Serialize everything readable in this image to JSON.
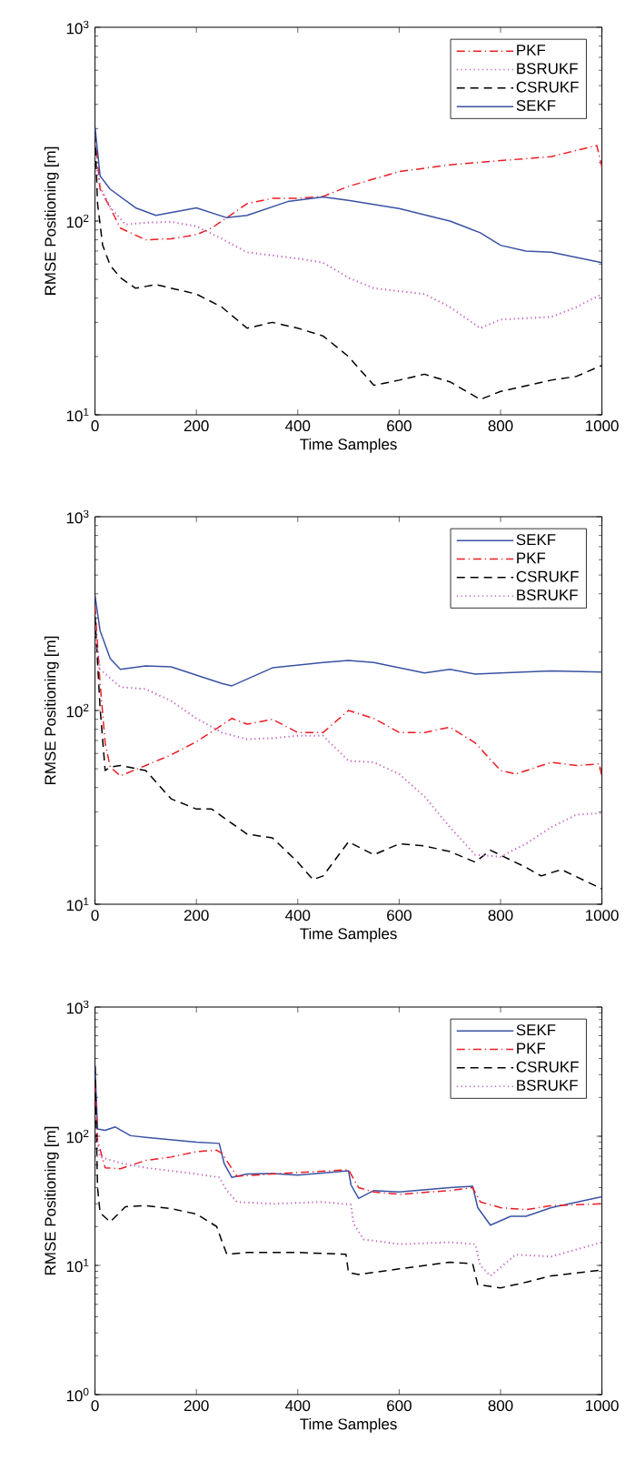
{
  "chart_data": [
    {
      "type": "line",
      "xlabel": "Time Samples",
      "ylabel": "RMSE Positioning [m]",
      "log": "y",
      "legend": "top right",
      "xlim": [
        0,
        1000
      ],
      "xticks": [
        0,
        200,
        400,
        600,
        800,
        1000
      ],
      "ylim": [
        10,
        1000
      ],
      "yticks": [
        {
          "value": 10,
          "label": "10$^{1}$"
        },
        {
          "value": 100,
          "label": "10$^{2}$"
        },
        {
          "value": 1000,
          "label": "10$^{3}$"
        }
      ],
      "series": [
        {
          "name": "PKF",
          "color": "#ed1c24",
          "line_style": "dashdot",
          "x": [
            0,
            10,
            30,
            50,
            100,
            150,
            200,
            230,
            260,
            300,
            350,
            400,
            450,
            500,
            600,
            700,
            800,
            900,
            960,
            990,
            1000
          ],
          "values": [
            282,
            146,
            117,
            92,
            80,
            81,
            85,
            92,
            104,
            123,
            131,
            131,
            134,
            151,
            180,
            195,
            205,
            215,
            235,
            245,
            190
          ]
        },
        {
          "name": "BSRUKF",
          "color": "#c05cc0",
          "line_style": "dotted",
          "x": [
            0,
            10,
            30,
            60,
            100,
            150,
            200,
            250,
            300,
            400,
            450,
            500,
            550,
            650,
            700,
            760,
            800,
            900,
            950,
            1000
          ],
          "values": [
            202,
            151,
            118,
            96,
            98,
            99,
            94,
            81,
            69,
            64,
            61,
            51,
            45,
            42,
            36,
            28,
            31,
            32,
            36,
            42
          ]
        },
        {
          "name": "CSRUKF",
          "color": "#000000",
          "line_style": "dashed",
          "x": [
            0,
            5,
            15,
            30,
            50,
            80,
            120,
            200,
            250,
            300,
            350,
            400,
            450,
            500,
            550,
            600,
            650,
            700,
            760,
            800,
            900,
            950,
            1000
          ],
          "values": [
            282,
            123,
            75,
            59,
            51,
            45,
            47,
            42,
            36,
            28,
            30,
            28,
            25.5,
            20,
            14.2,
            15.1,
            16.2,
            14.8,
            12,
            13.2,
            15.1,
            15.8,
            18
          ]
        },
        {
          "name": "SEKF",
          "color": "#3953a4",
          "line_style": "solid",
          "x": [
            0,
            10,
            30,
            80,
            120,
            200,
            260,
            300,
            380,
            450,
            500,
            600,
            700,
            760,
            800,
            850,
            900,
            1000
          ],
          "values": [
            306,
            171,
            146,
            117,
            107,
            117,
            104,
            107,
            126,
            133,
            128,
            116,
            100,
            87,
            75,
            70,
            69,
            61
          ]
        }
      ]
    },
    {
      "type": "line",
      "xlabel": "Time Samples",
      "ylabel": "RMSE Positioning [m]",
      "log": "y",
      "legend": "top right",
      "xlim": [
        0,
        1000
      ],
      "xticks": [
        0,
        200,
        400,
        600,
        800,
        1000
      ],
      "ylim": [
        10,
        1000
      ],
      "yticks": [
        {
          "value": 10,
          "label": "10$^{1}$"
        },
        {
          "value": 100,
          "label": "10$^{2}$"
        },
        {
          "value": 1000,
          "label": "10$^{3}$"
        }
      ],
      "series": [
        {
          "name": "SEKF",
          "color": "#3953a4",
          "line_style": "solid",
          "x": [
            0,
            10,
            30,
            50,
            100,
            150,
            250,
            270,
            350,
            450,
            500,
            550,
            650,
            700,
            750,
            800,
            900,
            1000
          ],
          "values": [
            392,
            258,
            185,
            163,
            170,
            168,
            138,
            134,
            166,
            177,
            181,
            177,
            156,
            163,
            154,
            156,
            160,
            158
          ]
        },
        {
          "name": "PKF",
          "color": "#ed1c24",
          "line_style": "dashdot",
          "x": [
            0,
            10,
            20,
            30,
            50,
            100,
            150,
            200,
            250,
            270,
            300,
            350,
            400,
            450,
            500,
            550,
            600,
            650,
            700,
            750,
            800,
            830,
            900,
            950,
            995,
            1000
          ],
          "values": [
            345,
            138,
            68,
            51,
            46,
            52,
            59,
            69,
            84,
            91,
            85,
            90,
            77,
            77,
            100,
            91,
            77,
            77,
            82,
            68,
            49,
            47,
            54,
            52,
            53,
            45
          ]
        },
        {
          "name": "CSRUKF",
          "color": "#000000",
          "line_style": "dashed",
          "x": [
            0,
            10,
            20,
            30,
            50,
            100,
            150,
            200,
            230,
            300,
            350,
            400,
            430,
            450,
            500,
            550,
            600,
            650,
            700,
            750,
            780,
            850,
            880,
            920,
            1000
          ],
          "values": [
            305,
            103,
            49,
            51,
            52,
            49,
            35,
            31,
            31,
            23,
            22,
            16.5,
            13.4,
            14,
            21,
            18,
            20.5,
            20,
            18.7,
            16.5,
            19,
            15.5,
            14,
            15.1,
            12
          ]
        },
        {
          "name": "BSRUKF",
          "color": "#c05cc0",
          "line_style": "dotted",
          "x": [
            0,
            10,
            50,
            100,
            150,
            200,
            250,
            300,
            350,
            400,
            450,
            500,
            550,
            600,
            650,
            700,
            750,
            800,
            850,
            900,
            950,
            1000
          ],
          "values": [
            258,
            163,
            132,
            129,
            112,
            91,
            77,
            71,
            72,
            74,
            74,
            55,
            54,
            47,
            36,
            25,
            18,
            17.6,
            20.5,
            25,
            29,
            29.5
          ]
        }
      ]
    },
    {
      "type": "line",
      "xlabel": "Time Samples",
      "ylabel": "RMSE Positioning [m]",
      "log": "y",
      "legend": "top right",
      "xlim": [
        0,
        1000
      ],
      "xticks": [
        0,
        200,
        400,
        600,
        800,
        1000
      ],
      "ylim": [
        1,
        1000
      ],
      "yticks": [
        {
          "value": 1,
          "label": "10$^{0}$"
        },
        {
          "value": 10,
          "label": "10$^{1}$"
        },
        {
          "value": 100,
          "label": "10$^{2}$"
        },
        {
          "value": 1000,
          "label": "10$^{3}$"
        }
      ],
      "series": [
        {
          "name": "SEKF",
          "color": "#3953a4",
          "line_style": "solid",
          "x": [
            0,
            5,
            20,
            40,
            70,
            100,
            200,
            245,
            255,
            270,
            300,
            350,
            400,
            500,
            505,
            520,
            550,
            600,
            700,
            745,
            755,
            780,
            820,
            850,
            900,
            1000
          ],
          "values": [
            350,
            114,
            111,
            118,
            101,
            98,
            90,
            88,
            61,
            48,
            51,
            51.5,
            50,
            54,
            42,
            33,
            38,
            37,
            40,
            41,
            28,
            20.5,
            24,
            24,
            28,
            34
          ]
        },
        {
          "name": "PKF",
          "color": "#ed1c24",
          "line_style": "dashdot",
          "x": [
            0,
            5,
            20,
            50,
            100,
            150,
            200,
            240,
            250,
            280,
            350,
            500,
            520,
            550,
            600,
            700,
            745,
            760,
            800,
            850,
            900,
            1000
          ],
          "values": [
            256,
            93,
            57,
            56,
            65,
            69,
            76,
            78,
            74,
            49,
            51,
            55,
            40,
            37,
            35.5,
            38,
            40,
            31,
            28,
            27,
            29,
            30
          ]
        },
        {
          "name": "CSRUKF",
          "color": "#000000",
          "line_style": "dashed",
          "x": [
            0,
            5,
            10,
            30,
            60,
            100,
            150,
            200,
            240,
            250,
            260,
            300,
            400,
            495,
            500,
            520,
            600,
            700,
            745,
            755,
            800,
            850,
            900,
            1000
          ],
          "values": [
            350,
            40,
            25.5,
            21.7,
            28.5,
            29,
            27.5,
            25,
            20,
            15.5,
            12.2,
            12.6,
            12.6,
            12.2,
            8.8,
            8.5,
            9.4,
            10.6,
            10.3,
            7.1,
            6.7,
            7.4,
            8.3,
            9.2
          ]
        },
        {
          "name": "BSRUKF",
          "color": "#c05cc0",
          "line_style": "dotted",
          "x": [
            0,
            10,
            50,
            100,
            200,
            245,
            260,
            280,
            350,
            450,
            505,
            510,
            530,
            600,
            700,
            750,
            760,
            780,
            830,
            900,
            1000
          ],
          "values": [
            114,
            69,
            62,
            57,
            51,
            48,
            38,
            31,
            30,
            31,
            29.5,
            21,
            15.9,
            14.6,
            15.1,
            14.6,
            10,
            8.3,
            12.1,
            11.7,
            15.1
          ]
        }
      ]
    }
  ]
}
